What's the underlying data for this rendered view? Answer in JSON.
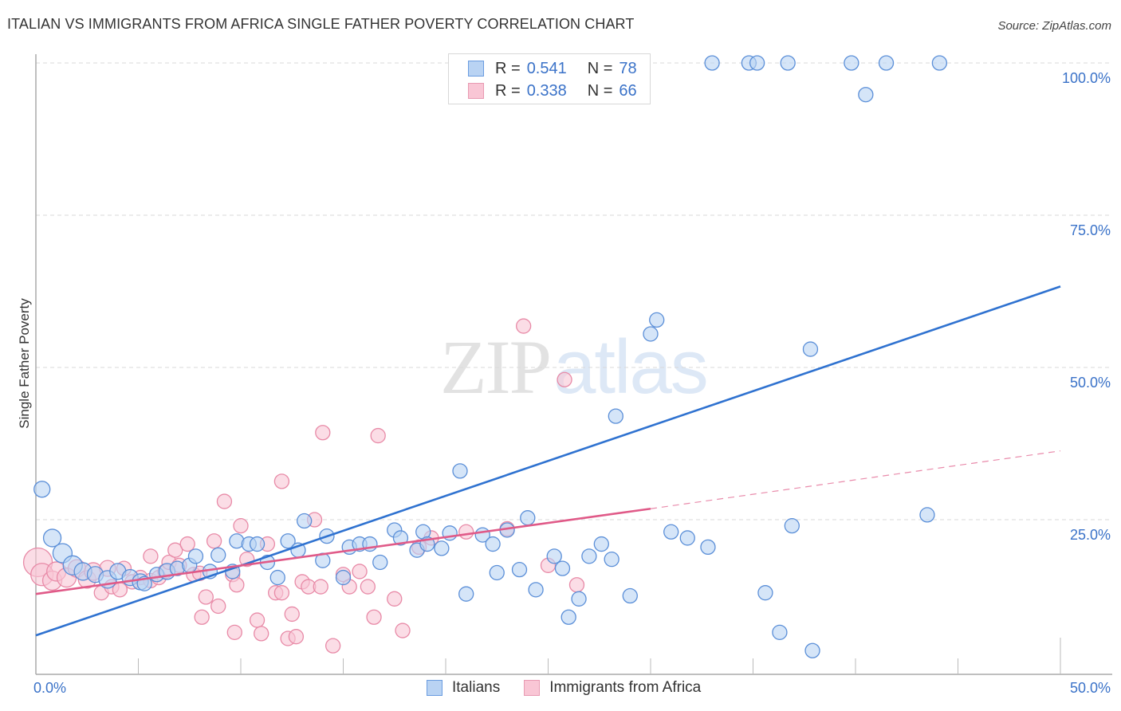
{
  "header": {
    "title": "ITALIAN VS IMMIGRANTS FROM AFRICA SINGLE FATHER POVERTY CORRELATION CHART",
    "source": "Source: ZipAtlas.com"
  },
  "watermark": {
    "zip": "ZIP",
    "atlas": "atlas"
  },
  "legend": {
    "rows": [
      {
        "r_label": "R =",
        "r_value": "0.541",
        "n_label": "N =",
        "n_value": "78"
      },
      {
        "r_label": "R =",
        "r_value": "0.338",
        "n_label": "N =",
        "n_value": "66"
      }
    ],
    "bottom": [
      "Italians",
      "Immigrants from Africa"
    ]
  },
  "colors": {
    "italians_fill": "#b9d3f3",
    "italians_stroke": "#5b8fd8",
    "italians_line": "#2f72d0",
    "africa_fill": "#f9c6d5",
    "africa_stroke": "#e88aa7",
    "africa_line": "#e05a88",
    "tick_label": "#3a72c8",
    "grid": "#d9d9d9"
  },
  "chart_data": {
    "type": "scatter",
    "title": "ITALIAN VS IMMIGRANTS FROM AFRICA SINGLE FATHER POVERTY CORRELATION CHART",
    "xlabel": "",
    "ylabel": "Single Father Poverty",
    "xlim": [
      0,
      50
    ],
    "ylim": [
      0,
      100
    ],
    "x_tick_labels": [
      "0.0%",
      "50.0%"
    ],
    "y_ticks": [
      25,
      50,
      75,
      100
    ],
    "y_tick_labels": [
      "25.0%",
      "50.0%",
      "75.0%",
      "100.0%"
    ],
    "grid": "horizontal-dashed",
    "legend_position": "top-center",
    "series": [
      {
        "name": "Italians",
        "r": 0.541,
        "n": 78,
        "trend": {
          "x": [
            0,
            50
          ],
          "y": [
            6.0,
            63.3
          ],
          "style": "solid"
        },
        "points": [
          [
            0.3,
            30.0,
            10
          ],
          [
            0.8,
            22.0,
            11
          ],
          [
            1.3,
            19.5,
            12
          ],
          [
            1.8,
            17.5,
            12
          ],
          [
            2.3,
            16.5,
            11
          ],
          [
            2.9,
            16.0,
            10
          ],
          [
            3.5,
            15.2,
            11
          ],
          [
            4.0,
            16.5,
            10
          ],
          [
            4.6,
            15.5,
            10
          ],
          [
            5.1,
            14.8,
            10
          ],
          [
            5.3,
            14.5,
            9
          ],
          [
            5.9,
            16.0,
            9
          ],
          [
            6.4,
            16.5,
            10
          ],
          [
            6.9,
            17.0,
            9
          ],
          [
            7.5,
            17.5,
            9
          ],
          [
            7.8,
            19.0,
            9
          ],
          [
            8.5,
            16.5,
            9
          ],
          [
            8.9,
            19.2,
            9
          ],
          [
            9.6,
            16.5,
            9
          ],
          [
            9.8,
            21.5,
            9
          ],
          [
            10.4,
            21.0,
            9
          ],
          [
            10.8,
            21.0,
            9
          ],
          [
            11.3,
            18.0,
            9
          ],
          [
            11.8,
            15.5,
            9
          ],
          [
            12.3,
            21.5,
            9
          ],
          [
            13.1,
            24.8,
            9
          ],
          [
            12.8,
            20.0,
            9
          ],
          [
            14.0,
            18.3,
            9
          ],
          [
            14.2,
            22.3,
            9
          ],
          [
            15.0,
            15.5,
            9
          ],
          [
            15.3,
            20.5,
            9
          ],
          [
            15.8,
            21.0,
            9
          ],
          [
            16.3,
            21.0,
            9
          ],
          [
            16.8,
            18.0,
            9
          ],
          [
            17.5,
            23.3,
            9
          ],
          [
            17.8,
            22.0,
            9
          ],
          [
            18.6,
            20.0,
            9
          ],
          [
            18.9,
            23.0,
            9
          ],
          [
            19.1,
            21.0,
            9
          ],
          [
            19.8,
            20.3,
            9
          ],
          [
            20.2,
            22.8,
            9
          ],
          [
            20.7,
            33.0,
            9
          ],
          [
            21.0,
            12.8,
            9
          ],
          [
            21.8,
            22.5,
            9
          ],
          [
            22.3,
            21.0,
            9
          ],
          [
            22.5,
            16.3,
            9
          ],
          [
            23.0,
            23.3,
            9
          ],
          [
            23.6,
            16.8,
            9
          ],
          [
            24.0,
            25.3,
            9
          ],
          [
            24.4,
            13.5,
            9
          ],
          [
            25.3,
            19.0,
            9
          ],
          [
            25.7,
            17.0,
            9
          ],
          [
            26.0,
            9.0,
            9
          ],
          [
            26.5,
            12.0,
            9
          ],
          [
            27.0,
            19.0,
            9
          ],
          [
            27.6,
            21.0,
            9
          ],
          [
            28.1,
            18.5,
            9
          ],
          [
            28.3,
            42.0,
            9
          ],
          [
            29.0,
            12.5,
            9
          ],
          [
            30.0,
            55.5,
            9
          ],
          [
            30.3,
            57.8,
            9
          ],
          [
            31.0,
            23.0,
            9
          ],
          [
            31.8,
            22.0,
            9
          ],
          [
            32.8,
            20.5,
            9
          ],
          [
            33.0,
            100.0,
            9
          ],
          [
            34.8,
            100.0,
            9
          ],
          [
            35.2,
            100.0,
            9
          ],
          [
            35.6,
            13.0,
            9
          ],
          [
            36.3,
            6.5,
            9
          ],
          [
            36.7,
            100.0,
            9
          ],
          [
            36.9,
            24.0,
            9
          ],
          [
            37.8,
            53.0,
            9
          ],
          [
            37.9,
            3.5,
            9
          ],
          [
            39.8,
            100.0,
            9
          ],
          [
            40.5,
            94.8,
            9
          ],
          [
            41.5,
            100.0,
            9
          ],
          [
            43.5,
            25.8,
            9
          ],
          [
            44.1,
            100.0,
            9
          ]
        ]
      },
      {
        "name": "Immigrants from Africa",
        "r": 0.338,
        "n": 66,
        "trend": {
          "x": [
            0,
            30
          ],
          "y": [
            12.8,
            26.8
          ],
          "style": "solid",
          "extended": {
            "x": [
              30,
              50
            ],
            "y": [
              26.8,
              36.3
            ],
            "style": "dashed"
          }
        },
        "points": [
          [
            0.1,
            18.0,
            18
          ],
          [
            0.3,
            16.0,
            14
          ],
          [
            0.8,
            15.0,
            12
          ],
          [
            1.0,
            16.5,
            12
          ],
          [
            1.5,
            15.5,
            12
          ],
          [
            2.0,
            17.0,
            11
          ],
          [
            2.5,
            15.2,
            11
          ],
          [
            2.8,
            16.5,
            11
          ],
          [
            3.2,
            13.0,
            9
          ],
          [
            3.5,
            17.0,
            10
          ],
          [
            3.7,
            14.0,
            9
          ],
          [
            4.1,
            13.5,
            9
          ],
          [
            4.3,
            17.0,
            9
          ],
          [
            4.7,
            14.8,
            9
          ],
          [
            5.1,
            15.5,
            9
          ],
          [
            5.6,
            15.0,
            9
          ],
          [
            5.6,
            19.0,
            9
          ],
          [
            6.0,
            15.5,
            9
          ],
          [
            6.3,
            16.5,
            9
          ],
          [
            6.5,
            18.0,
            9
          ],
          [
            6.8,
            20.0,
            9
          ],
          [
            7.0,
            17.5,
            9
          ],
          [
            7.4,
            21.0,
            9
          ],
          [
            7.7,
            16.0,
            9
          ],
          [
            8.0,
            16.2,
            9
          ],
          [
            8.1,
            9.0,
            9
          ],
          [
            8.3,
            12.3,
            9
          ],
          [
            8.7,
            21.5,
            9
          ],
          [
            8.9,
            10.8,
            9
          ],
          [
            9.2,
            28.0,
            9
          ],
          [
            9.6,
            16.0,
            9
          ],
          [
            9.7,
            6.5,
            9
          ],
          [
            9.8,
            14.3,
            9
          ],
          [
            10.0,
            24.0,
            9
          ],
          [
            10.3,
            18.5,
            9
          ],
          [
            10.8,
            8.5,
            9
          ],
          [
            11.0,
            6.3,
            9
          ],
          [
            11.3,
            21.0,
            9
          ],
          [
            11.7,
            13.0,
            9
          ],
          [
            12.0,
            31.3,
            9
          ],
          [
            12.0,
            13.0,
            9
          ],
          [
            12.3,
            5.5,
            9
          ],
          [
            12.5,
            9.5,
            9
          ],
          [
            12.7,
            5.8,
            9
          ],
          [
            13.0,
            14.8,
            9
          ],
          [
            13.3,
            14.0,
            9
          ],
          [
            13.6,
            25.0,
            9
          ],
          [
            13.9,
            14.0,
            9
          ],
          [
            14.0,
            39.3,
            9
          ],
          [
            14.5,
            4.3,
            9
          ],
          [
            15.0,
            16.0,
            9
          ],
          [
            15.3,
            14.0,
            9
          ],
          [
            15.8,
            16.5,
            9
          ],
          [
            16.2,
            14.0,
            9
          ],
          [
            16.5,
            9.0,
            9
          ],
          [
            16.7,
            38.8,
            9
          ],
          [
            17.5,
            12.0,
            9
          ],
          [
            17.9,
            6.8,
            9
          ],
          [
            18.7,
            20.5,
            9
          ],
          [
            19.3,
            22.0,
            9
          ],
          [
            21.0,
            23.0,
            9
          ],
          [
            23.0,
            23.5,
            9
          ],
          [
            23.8,
            56.8,
            9
          ],
          [
            25.8,
            48.0,
            9
          ],
          [
            26.4,
            14.3,
            9
          ],
          [
            25.0,
            17.5,
            9
          ]
        ]
      }
    ]
  }
}
